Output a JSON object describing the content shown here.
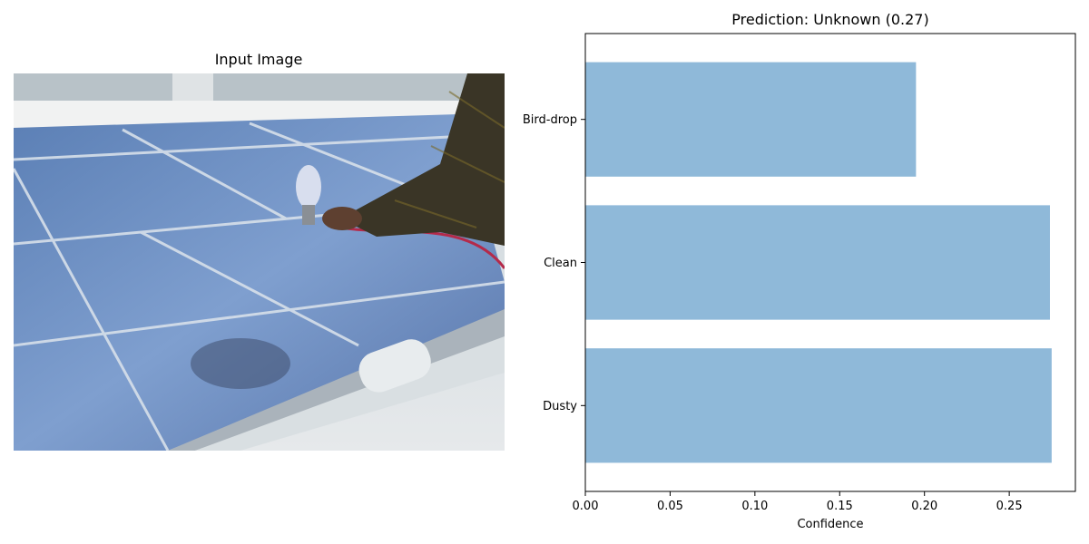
{
  "left_panel": {
    "title": "Input Image",
    "photo_description_icon": "solar-panel-spray-cleaning-photo"
  },
  "chart_data": {
    "type": "bar",
    "orientation": "horizontal",
    "title": "Prediction: Unknown (0.27)",
    "categories": [
      "Bird-drop",
      "Clean",
      "Dusty"
    ],
    "values": [
      0.195,
      0.274,
      0.275
    ],
    "xlabel": "Confidence",
    "ylabel": "",
    "xlim": [
      0,
      0.289
    ],
    "xticks": [
      "0.00",
      "0.05",
      "0.10",
      "0.15",
      "0.20",
      "0.25"
    ],
    "xtick_values": [
      0,
      0.05,
      0.1,
      0.15,
      0.2,
      0.25
    ],
    "grid": false,
    "bar_color": "#8fb9d9"
  }
}
